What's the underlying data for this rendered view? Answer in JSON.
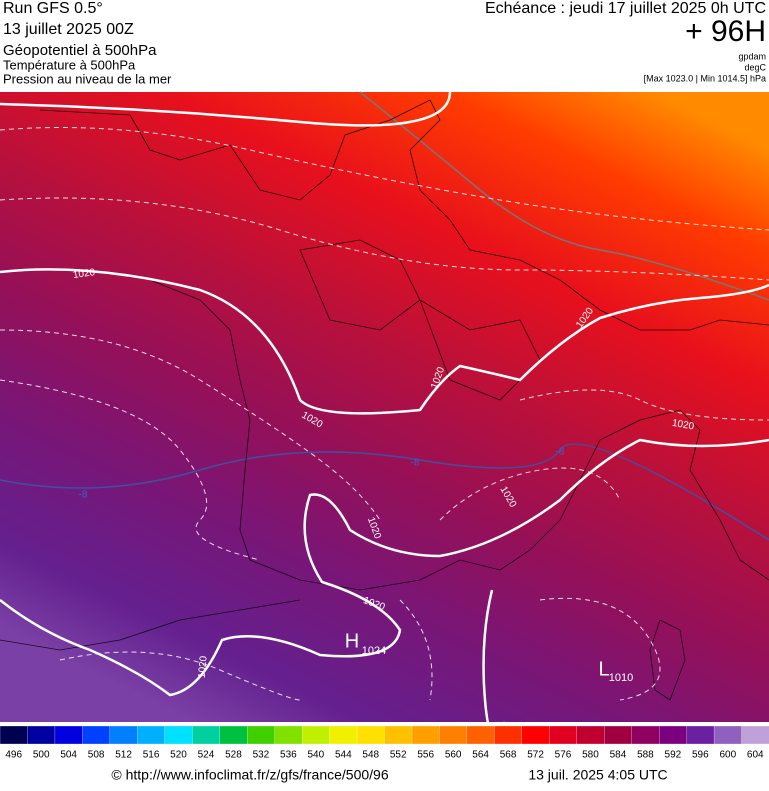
{
  "header": {
    "run": "Run GFS 0.5°",
    "date": "13 juillet 2025 00Z",
    "field_main": "Géopotentiel à 500hPa",
    "field_temperature": "Température à 500hPa",
    "field_pressure": "Pression au niveau de la mer",
    "echeance": "Echéance : jeudi 17 juillet 2025 0h UTC",
    "lead": "+ 96H",
    "unit_geopotential": "gpdam",
    "unit_temperature": "degC",
    "pressure_range": "[Max 1023.0 | Min 1014.5] hPa"
  },
  "map": {
    "isobar_labels": [
      "1020",
      "1020",
      "1020",
      "1020",
      "1020",
      "1020",
      "1020",
      "1020",
      "1020"
    ],
    "temperature_labels": [
      "-8",
      "-8",
      "-8"
    ],
    "high": {
      "letter": "H",
      "value": "1024"
    },
    "low": {
      "letter": "L",
      "value": "1010"
    }
  },
  "colorbar": {
    "labels": [
      "496",
      "500",
      "504",
      "508",
      "512",
      "516",
      "520",
      "524",
      "528",
      "532",
      "536",
      "540",
      "544",
      "548",
      "552",
      "556",
      "560",
      "564",
      "568",
      "572",
      "576",
      "580",
      "584",
      "588",
      "592",
      "596",
      "600",
      "604"
    ],
    "colors": [
      "#000050",
      "#0000a0",
      "#0000e0",
      "#0040ff",
      "#0080ff",
      "#00b0ff",
      "#00e0ff",
      "#00d0a0",
      "#00c040",
      "#40d000",
      "#80e000",
      "#c0f000",
      "#f0f000",
      "#ffe000",
      "#ffc000",
      "#ffa000",
      "#ff8000",
      "#ff6000",
      "#ff3000",
      "#ff0000",
      "#e00020",
      "#c00030",
      "#a00040",
      "#900060",
      "#7a0080",
      "#6a20a0",
      "#9060c0",
      "#c0a0d8"
    ]
  },
  "footer": {
    "url": "© http://www.infoclimat.fr/z/gfs/france/500/96",
    "timestamp": "13 juil. 2025  4:05 UTC"
  }
}
